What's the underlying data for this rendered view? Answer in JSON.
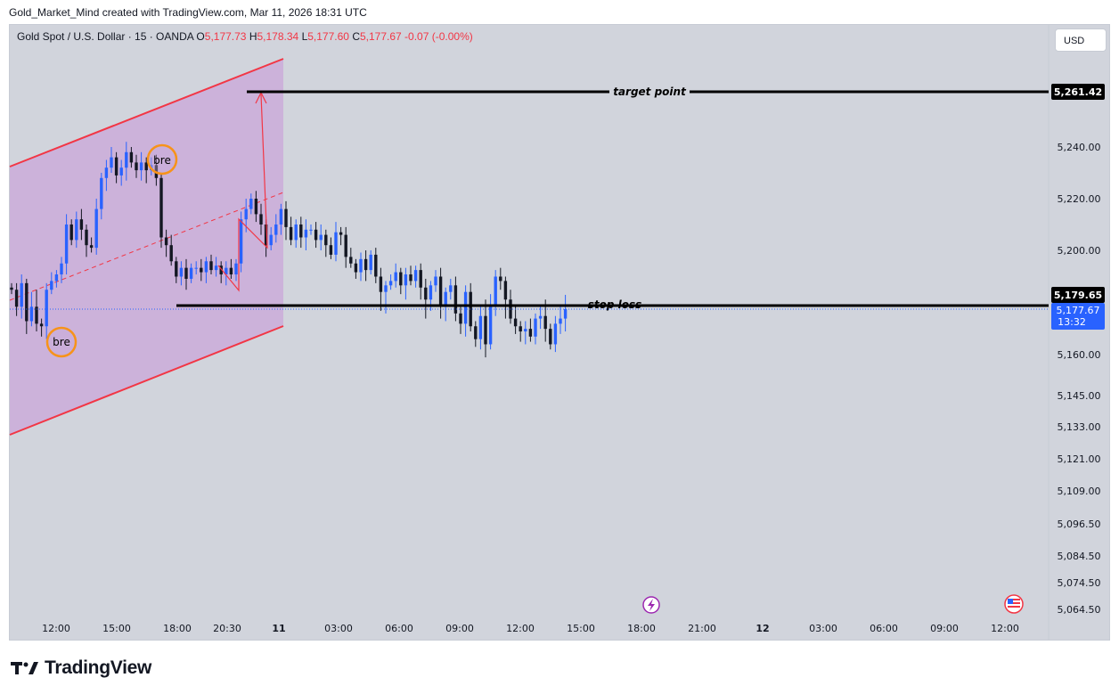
{
  "header": {
    "credit": "Gold_Market_Mind created with TradingView.com, Mar 11, 2026 18:31 UTC"
  },
  "legend": {
    "symbol": "Gold Spot / U.S. Dollar · 15 · OANDA",
    "open_label": "O",
    "open": "5,177.73",
    "high_label": "H",
    "high": "5,178.34",
    "low_label": "L",
    "low": "5,177.60",
    "close_label": "C",
    "close": "5,177.67",
    "change": "-0.07 (-0.00%)"
  },
  "currency_button": "USD",
  "footer": {
    "brand": "TradingView"
  },
  "colors": {
    "background": "#d1d4dc",
    "up_candle": "#2962ff",
    "down_candle": "#131722",
    "channel_line": "#f23645",
    "channel_fill": "#c9a7d9",
    "bre_circle": "#f7931a",
    "price_tag": "#2962ff"
  },
  "chart_data": {
    "type": "candlestick",
    "symbol": "XAUUSD",
    "interval": "15",
    "x_ticks": [
      "12:00",
      "15:00",
      "18:00",
      "20:30",
      "11",
      "03:00",
      "06:00",
      "09:00",
      "12:00",
      "15:00",
      "18:00",
      "21:00",
      "12",
      "03:00",
      "06:00",
      "09:00",
      "12:00"
    ],
    "y_ticks": [
      "5,240.00",
      "5,220.00",
      "5,200.00",
      "5,160.00",
      "5,145.00",
      "5,133.00",
      "5,121.00",
      "5,109.00",
      "5,096.50",
      "5,084.50",
      "5,074.50",
      "5,064.50"
    ],
    "y_tick_values": [
      5240,
      5220,
      5200,
      5160,
      5145,
      5133,
      5121,
      5109,
      5096.5,
      5084.5,
      5074.5,
      5064.5
    ],
    "last_price": "5,177.67",
    "countdown": "13:32",
    "annotations": {
      "target_label": "target point",
      "target_price": "5,261.42",
      "stop_label": "stop loss",
      "stop_price": "5,179.65",
      "circle_label_1": "bre",
      "circle_label_2": "bre"
    },
    "closes": [
      5182,
      5178,
      5185,
      5173,
      5178,
      5172,
      5171,
      5182,
      5186,
      5189,
      5194,
      5210,
      5204,
      5212,
      5208,
      5202,
      5201,
      5216,
      5228,
      5232,
      5236,
      5229,
      5232,
      5238,
      5234,
      5231,
      5234,
      5231,
      5233,
      5228,
      5205,
      5202,
      5195,
      5188,
      5192,
      5187,
      5192,
      5192,
      5190,
      5195,
      5191,
      5193,
      5189,
      5192,
      5189,
      5194,
      5212,
      5216,
      5220,
      5214,
      5210,
      5202,
      5206,
      5210,
      5216,
      5209,
      5204,
      5210,
      5205,
      5208,
      5208,
      5204,
      5206,
      5202,
      5198,
      5207,
      5206,
      5197,
      5194,
      5190,
      5196,
      5191,
      5198,
      5188,
      5181,
      5184,
      5186,
      5190,
      5184,
      5189,
      5186,
      5191,
      5183,
      5179,
      5184,
      5188,
      5178,
      5181,
      5184,
      5176,
      5172,
      5181,
      5171,
      5166,
      5175,
      5164,
      5178,
      5188,
      5186,
      5179,
      5174,
      5171,
      5169,
      5170,
      5167,
      5174,
      5175,
      5170,
      5164,
      5172,
      5174,
      5177.67
    ]
  }
}
